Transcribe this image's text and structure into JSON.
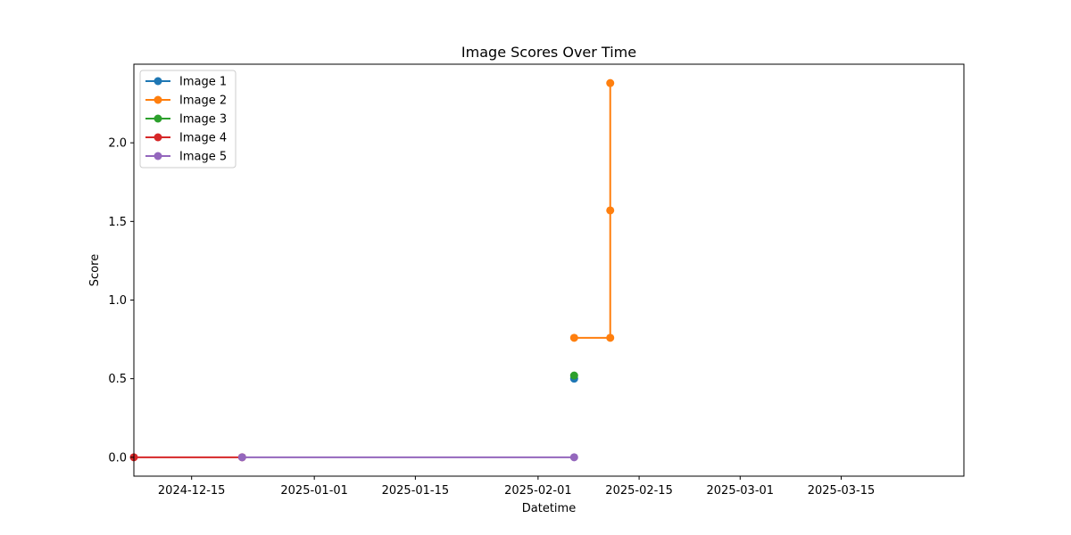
{
  "chart_data": {
    "type": "line",
    "title": "Image Scores Over Time",
    "xlabel": "Datetime",
    "ylabel": "Score",
    "x_axis_type": "datetime",
    "xlim": [
      "2024-12-07",
      "2025-04-01"
    ],
    "ylim": [
      -0.12,
      2.5
    ],
    "x_ticks": [
      "2024-12-15",
      "2025-01-01",
      "2025-01-15",
      "2025-02-01",
      "2025-02-15",
      "2025-03-01",
      "2025-03-15"
    ],
    "y_ticks": [
      0.0,
      0.5,
      1.0,
      1.5,
      2.0
    ],
    "y_tick_labels": [
      "0.0",
      "0.5",
      "1.0",
      "1.5",
      "2.0"
    ],
    "grid": false,
    "legend_position": "top-left",
    "series": [
      {
        "name": "Image 1",
        "color": "#1f77b4",
        "points": [
          {
            "x": "2025-02-06",
            "y": 0.5
          }
        ]
      },
      {
        "name": "Image 2",
        "color": "#ff7f0e",
        "points": [
          {
            "x": "2025-02-06",
            "y": 0.76
          },
          {
            "x": "2025-02-11",
            "y": 0.76
          },
          {
            "x": "2025-02-11",
            "y": 1.57
          },
          {
            "x": "2025-02-11",
            "y": 2.38
          }
        ]
      },
      {
        "name": "Image 3",
        "color": "#2ca02c",
        "points": [
          {
            "x": "2025-02-06",
            "y": 0.52
          }
        ]
      },
      {
        "name": "Image 4",
        "color": "#d62728",
        "points": [
          {
            "x": "2024-12-07",
            "y": 0.0
          },
          {
            "x": "2024-12-22",
            "y": 0.0
          }
        ]
      },
      {
        "name": "Image 5",
        "color": "#9467bd",
        "points": [
          {
            "x": "2024-12-22",
            "y": 0.0
          },
          {
            "x": "2025-02-06",
            "y": 0.0
          }
        ]
      }
    ]
  }
}
